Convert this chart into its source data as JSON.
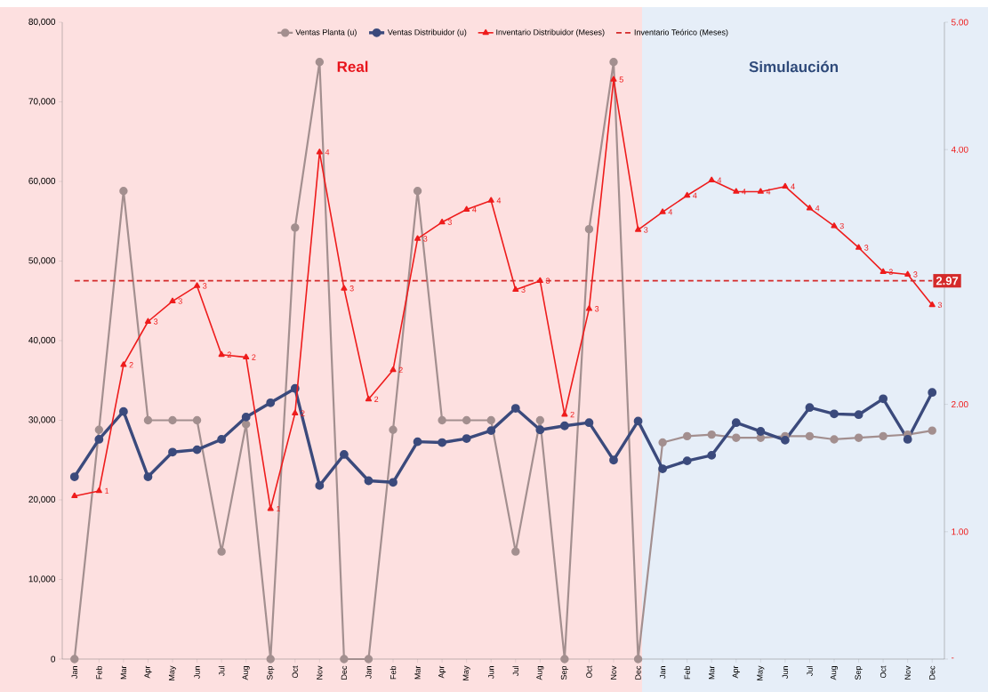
{
  "chart_data": {
    "type": "line",
    "categories": [
      "Jan",
      "Feb",
      "Mar",
      "Apr",
      "May",
      "Jun",
      "Jul",
      "Aug",
      "Sep",
      "Oct",
      "Nov",
      "Dec",
      "Jan",
      "Feb",
      "Mar",
      "Apr",
      "May",
      "Jun",
      "Jul",
      "Aug",
      "Sep",
      "Oct",
      "Nov",
      "Dec",
      "Jan",
      "Feb",
      "Mar",
      "Apr",
      "May",
      "Jun",
      "Jul",
      "Aug",
      "Sep",
      "Oct",
      "Nov",
      "Dec"
    ],
    "series": [
      {
        "name": "Ventas Planta (u)",
        "color": "#a38f8f",
        "marker": "circle",
        "values": [
          0,
          28800,
          58800,
          30000,
          30000,
          30000,
          13500,
          29500,
          0,
          54200,
          75000,
          0,
          0,
          28800,
          58800,
          30000,
          30000,
          30000,
          13500,
          30000,
          0,
          54000,
          75000,
          0,
          27200,
          28000,
          28200,
          27800,
          27800,
          28000,
          28000,
          27600,
          27800,
          28000,
          28200,
          28700
        ]
      },
      {
        "name": "Ventas Distribuidor (u)",
        "color": "#3b4a7c",
        "marker": "circle",
        "values": [
          22900,
          27600,
          31100,
          22900,
          26000,
          26300,
          27600,
          30400,
          32200,
          34000,
          21800,
          25700,
          22400,
          22200,
          27300,
          27200,
          27700,
          28700,
          31500,
          28800,
          29300,
          29700,
          25000,
          29900,
          23900,
          24900,
          25600,
          29700,
          28600,
          27500,
          31600,
          30800,
          30700,
          32700,
          27600,
          33500
        ]
      },
      {
        "name": "Inventario Distribuidor (Meses)",
        "axis": "y2",
        "color": "#ee1c1c",
        "marker": "triangle",
        "values": [
          1.28,
          1.32,
          2.31,
          2.65,
          2.81,
          2.93,
          2.39,
          2.37,
          1.18,
          1.93,
          3.98,
          2.91,
          2.04,
          2.27,
          3.3,
          3.43,
          3.53,
          3.6,
          2.9,
          2.97,
          1.92,
          2.75,
          4.55,
          3.37,
          3.51,
          3.64,
          3.76,
          3.67,
          3.67,
          3.71,
          3.54,
          3.4,
          3.23,
          3.04,
          3.02,
          2.78
        ],
        "value_labels": [
          null,
          "1",
          "2",
          "3",
          "3",
          "3",
          "2",
          "2",
          "1",
          "2",
          "4",
          "3",
          "2",
          "2",
          "3",
          "3",
          "4",
          "4",
          "3",
          "3",
          "2",
          "3",
          "5",
          "3",
          "4",
          "4",
          "4",
          "4",
          "4",
          "4",
          "4",
          "3",
          "3",
          "3",
          "3",
          "3"
        ]
      },
      {
        "name": "Inventario Teórico (Meses)",
        "axis": "y2",
        "color": "#d42a2a",
        "marker": "none",
        "line_style": "dashed",
        "values": [
          2.97,
          2.97,
          2.97,
          2.97,
          2.97,
          2.97,
          2.97,
          2.97,
          2.97,
          2.97,
          2.97,
          2.97,
          2.97,
          2.97,
          2.97,
          2.97,
          2.97,
          2.97,
          2.97,
          2.97,
          2.97,
          2.97,
          2.97,
          2.97,
          2.97,
          2.97,
          2.97,
          2.97,
          2.97,
          2.97,
          2.97,
          2.97,
          2.97,
          2.97,
          2.97,
          2.97
        ],
        "value_labels": [
          null,
          null,
          null,
          null,
          null,
          null,
          null,
          null,
          null,
          null,
          null,
          null,
          null,
          null,
          null,
          null,
          null,
          null,
          null,
          null,
          null,
          null,
          null,
          null,
          null,
          null,
          null,
          null,
          null,
          null,
          null,
          null,
          null,
          null,
          null,
          "2.97"
        ]
      }
    ],
    "ylim": [
      0,
      80000
    ],
    "yticks": [
      {
        "value": 0,
        "label": "0"
      },
      {
        "value": 10000,
        "label": "10,000"
      },
      {
        "value": 20000,
        "label": "20,000"
      },
      {
        "value": 30000,
        "label": "30,000"
      },
      {
        "value": 40000,
        "label": "40,000"
      },
      {
        "value": 50000,
        "label": "50,000"
      },
      {
        "value": 60000,
        "label": "60,000"
      },
      {
        "value": 70000,
        "label": "70,000"
      },
      {
        "value": 80000,
        "label": "80,000"
      }
    ],
    "y2lim": [
      0,
      5
    ],
    "y2ticks": [
      {
        "value": 0,
        "label": "-"
      },
      {
        "value": 1,
        "label": "1.00"
      },
      {
        "value": 2,
        "label": "2.00"
      },
      {
        "value": 3,
        "label": null
      },
      {
        "value": 4,
        "label": "4.00"
      },
      {
        "value": 5,
        "label": "5.00"
      }
    ],
    "annotations": [
      "Real",
      "Simulaución"
    ],
    "grid": false,
    "legend": "top"
  }
}
